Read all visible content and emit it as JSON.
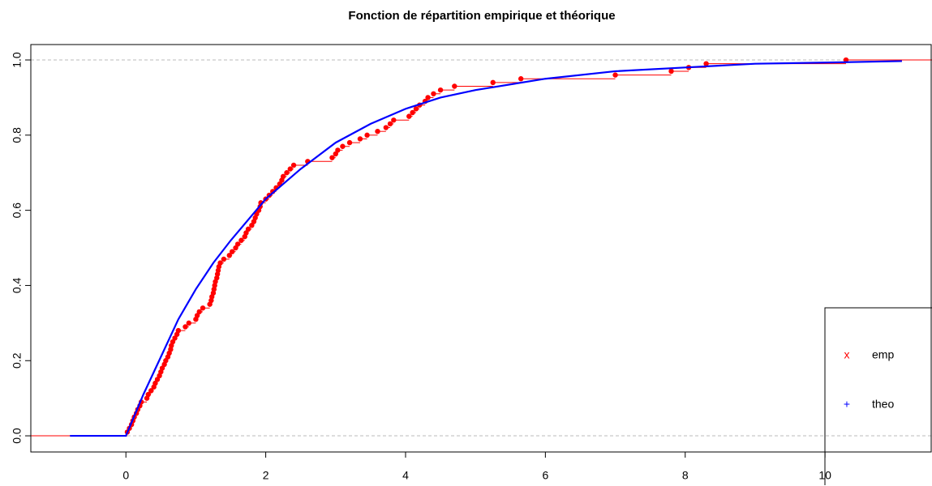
{
  "chart_data": {
    "type": "line",
    "title": "Fonction de répartition empirique et théorique",
    "series": [
      {
        "name": "emp",
        "color": "#ff0000",
        "marker": "x",
        "step": true,
        "x": [
          0.02,
          0.05,
          0.08,
          0.1,
          0.12,
          0.15,
          0.17,
          0.2,
          0.22,
          0.3,
          0.32,
          0.36,
          0.4,
          0.42,
          0.45,
          0.48,
          0.5,
          0.52,
          0.55,
          0.57,
          0.6,
          0.62,
          0.64,
          0.65,
          0.67,
          0.7,
          0.73,
          0.75,
          0.85,
          0.9,
          1.0,
          1.02,
          1.05,
          1.1,
          1.2,
          1.22,
          1.23,
          1.25,
          1.26,
          1.27,
          1.28,
          1.3,
          1.31,
          1.32,
          1.33,
          1.35,
          1.4,
          1.48,
          1.52,
          1.57,
          1.6,
          1.65,
          1.7,
          1.72,
          1.75,
          1.8,
          1.83,
          1.85,
          1.87,
          1.9,
          1.92,
          1.93,
          2.0,
          2.05,
          2.1,
          2.15,
          2.2,
          2.23,
          2.25,
          2.3,
          2.35,
          2.4,
          2.6,
          2.95,
          3.0,
          3.03,
          3.1,
          3.2,
          3.35,
          3.45,
          3.6,
          3.72,
          3.78,
          3.83,
          4.05,
          4.1,
          4.15,
          4.2,
          4.28,
          4.32,
          4.4,
          4.5,
          4.7,
          5.25,
          5.65,
          7.0,
          7.8,
          8.05,
          8.3,
          10.3
        ],
        "values": [
          0.01,
          0.02,
          0.03,
          0.04,
          0.05,
          0.06,
          0.07,
          0.08,
          0.09,
          0.1,
          0.11,
          0.12,
          0.13,
          0.14,
          0.15,
          0.16,
          0.17,
          0.18,
          0.19,
          0.2,
          0.21,
          0.22,
          0.23,
          0.24,
          0.25,
          0.26,
          0.27,
          0.28,
          0.29,
          0.3,
          0.31,
          0.32,
          0.33,
          0.34,
          0.35,
          0.36,
          0.37,
          0.38,
          0.39,
          0.4,
          0.41,
          0.42,
          0.43,
          0.44,
          0.45,
          0.46,
          0.47,
          0.48,
          0.49,
          0.5,
          0.51,
          0.52,
          0.53,
          0.54,
          0.55,
          0.56,
          0.57,
          0.58,
          0.59,
          0.6,
          0.61,
          0.62,
          0.63,
          0.64,
          0.65,
          0.66,
          0.67,
          0.68,
          0.69,
          0.7,
          0.71,
          0.72,
          0.73,
          0.74,
          0.75,
          0.76,
          0.77,
          0.78,
          0.79,
          0.8,
          0.81,
          0.82,
          0.83,
          0.84,
          0.85,
          0.86,
          0.87,
          0.88,
          0.89,
          0.9,
          0.91,
          0.92,
          0.93,
          0.94,
          0.95,
          0.96,
          0.97,
          0.98,
          0.99,
          1
        ]
      },
      {
        "name": "theo",
        "color": "#0000ff",
        "marker": "+",
        "x": [
          -0.8,
          0,
          0.25,
          0.5,
          0.75,
          1,
          1.25,
          1.5,
          2,
          2.5,
          3,
          3.5,
          4,
          4.5,
          5,
          6,
          7,
          8,
          9,
          10,
          11.1
        ],
        "values": [
          0,
          0,
          0.11,
          0.21,
          0.31,
          0.39,
          0.46,
          0.52,
          0.63,
          0.71,
          0.78,
          0.83,
          0.87,
          0.9,
          0.92,
          0.95,
          0.97,
          0.98,
          0.99,
          0.993,
          0.997
        ]
      }
    ],
    "xlim": [
      -1.36,
      11.53
    ],
    "ylim": [
      -0.043,
      1.041
    ],
    "xticks": [
      0,
      2,
      4,
      6,
      8,
      10
    ],
    "yticks": [
      {
        "value": 0,
        "label": "0.0"
      },
      0.2,
      0.4,
      0.6,
      0.8,
      {
        "value": 1,
        "label": "1.0"
      }
    ],
    "reference_lines": [
      0,
      1
    ]
  }
}
